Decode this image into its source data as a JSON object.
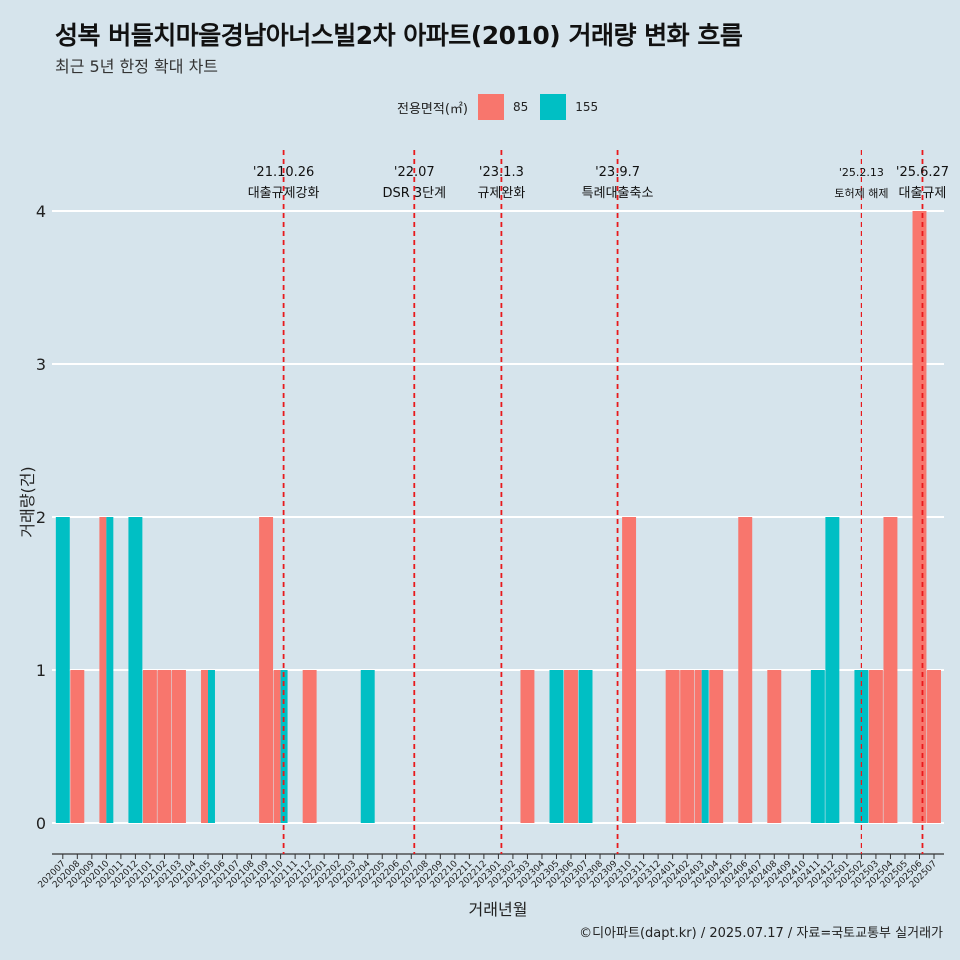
{
  "title": "성복 버들치마을경남아너스빌2차 아파트(2010) 거래량 변화 흐름",
  "subtitle": "최근 5년 한정 확대 차트",
  "footer": "©디아파트(dapt.kr) / 2025.07.17 / 자료=국토교통부 실거래가",
  "colors": {
    "s85": "#f8766d",
    "s155": "#00bfc4",
    "vline": "#e8191c",
    "background": "#d6e4ec",
    "grid": "#ffffff"
  },
  "chart_data": {
    "type": "bar",
    "xlabel": "거래년월",
    "ylabel": "거래량(건)",
    "ylim": [
      0,
      4
    ],
    "yticks": [
      0,
      1,
      2,
      3,
      4
    ],
    "grid": true,
    "legend": {
      "title": "전용면적(㎡)",
      "position": "top"
    },
    "categories": [
      "202007",
      "202008",
      "202009",
      "202010",
      "202011",
      "202012",
      "202101",
      "202102",
      "202103",
      "202104",
      "202105",
      "202106",
      "202107",
      "202108",
      "202109",
      "202110",
      "202111",
      "202112",
      "202201",
      "202202",
      "202203",
      "202204",
      "202205",
      "202206",
      "202207",
      "202208",
      "202209",
      "202210",
      "202211",
      "202212",
      "202301",
      "202302",
      "202303",
      "202304",
      "202305",
      "202306",
      "202307",
      "202308",
      "202309",
      "202310",
      "202311",
      "202312",
      "202401",
      "202402",
      "202403",
      "202404",
      "202405",
      "202406",
      "202407",
      "202408",
      "202409",
      "202410",
      "202411",
      "202412",
      "202501",
      "202502",
      "202503",
      "202504",
      "202505",
      "202506",
      "202507"
    ],
    "series": [
      {
        "name": "85",
        "values": [
          0,
          1,
          0,
          2,
          0,
          0,
          1,
          1,
          1,
          0,
          1,
          0,
          0,
          0,
          2,
          1,
          0,
          1,
          0,
          0,
          0,
          0,
          0,
          0,
          0,
          0,
          0,
          0,
          0,
          0,
          0,
          0,
          1,
          0,
          0,
          1,
          0,
          0,
          0,
          2,
          0,
          0,
          1,
          1,
          1,
          1,
          0,
          2,
          0,
          1,
          0,
          0,
          0,
          0,
          0,
          0,
          1,
          2,
          0,
          4,
          1
        ]
      },
      {
        "name": "155",
        "values": [
          2,
          0,
          0,
          2,
          0,
          2,
          0,
          0,
          0,
          0,
          1,
          0,
          0,
          0,
          0,
          1,
          0,
          0,
          0,
          0,
          0,
          1,
          0,
          0,
          0,
          0,
          0,
          0,
          0,
          0,
          0,
          0,
          0,
          0,
          1,
          0,
          1,
          0,
          0,
          0,
          0,
          0,
          0,
          0,
          1,
          0,
          0,
          0,
          0,
          0,
          0,
          0,
          1,
          2,
          0,
          1,
          0,
          0,
          0,
          0,
          0
        ]
      }
    ],
    "annotations": [
      {
        "at": "202110",
        "date": "'21.10.26",
        "label": "대출규제강화"
      },
      {
        "at": "202207",
        "date": "'22.07",
        "label": "DSR 3단계"
      },
      {
        "at": "202301",
        "date": "'23.1.3",
        "label": "규제완화"
      },
      {
        "at": "202309",
        "date": "'23.9.7",
        "label": "특례대출축소"
      },
      {
        "at": "202502",
        "date": "'25.2.13",
        "label": "토허제 해제"
      },
      {
        "at": "202506",
        "date": "'25.6.27",
        "label": "대출규제"
      }
    ]
  }
}
